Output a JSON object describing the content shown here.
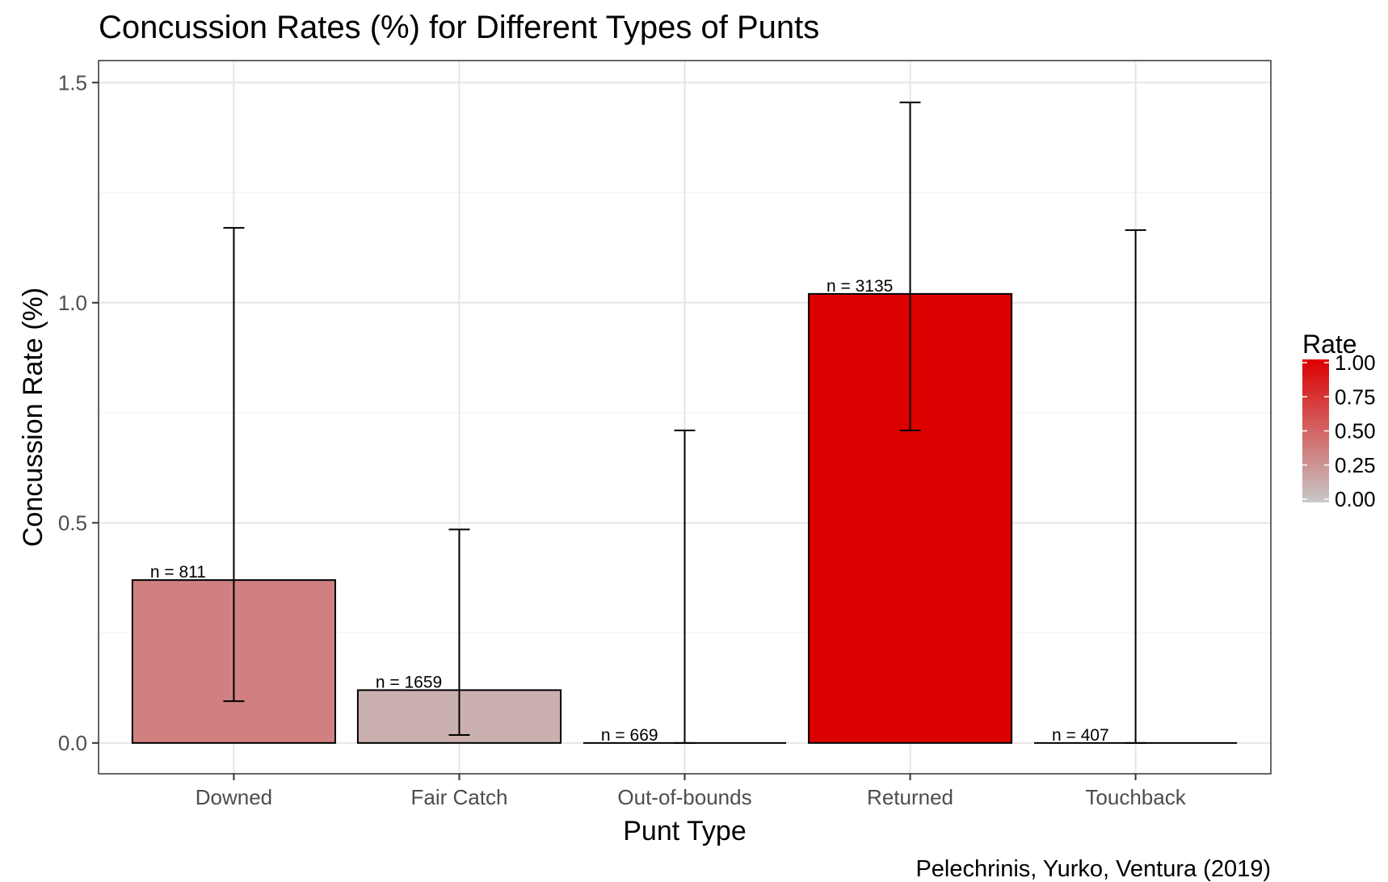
{
  "chart_data": {
    "type": "bar",
    "title": "Concussion Rates (%) for Different Types of Punts",
    "xlabel": "Punt Type",
    "ylabel": "Concussion Rate (%)",
    "caption": "Pelechrinis, Yurko, Ventura (2019)",
    "categories": [
      "Downed",
      "Fair Catch",
      "Out-of-bounds",
      "Returned",
      "Touchback"
    ],
    "values": [
      0.37,
      0.12,
      0.0,
      1.02,
      0.0
    ],
    "error_low": [
      0.095,
      0.018,
      0.0,
      0.71,
      0.0
    ],
    "error_high": [
      1.17,
      0.485,
      0.71,
      1.455,
      1.165
    ],
    "labels": [
      "n = 811",
      "n = 1659",
      "n = 669",
      "n = 3135",
      "n = 407"
    ],
    "fill_values": [
      0.36,
      0.12,
      0.0,
      1.0,
      0.0
    ],
    "ylim": [
      -0.07,
      1.55
    ],
    "yticks": [
      "0.0",
      "0.5",
      "1.0",
      "1.5"
    ],
    "grid": true,
    "legend": {
      "title": "Rate",
      "position": "right",
      "ticks": [
        "0.00",
        "0.25",
        "0.50",
        "0.75",
        "1.00"
      ],
      "color_low": "#c8c8c8",
      "color_high": "#dd0000"
    }
  }
}
